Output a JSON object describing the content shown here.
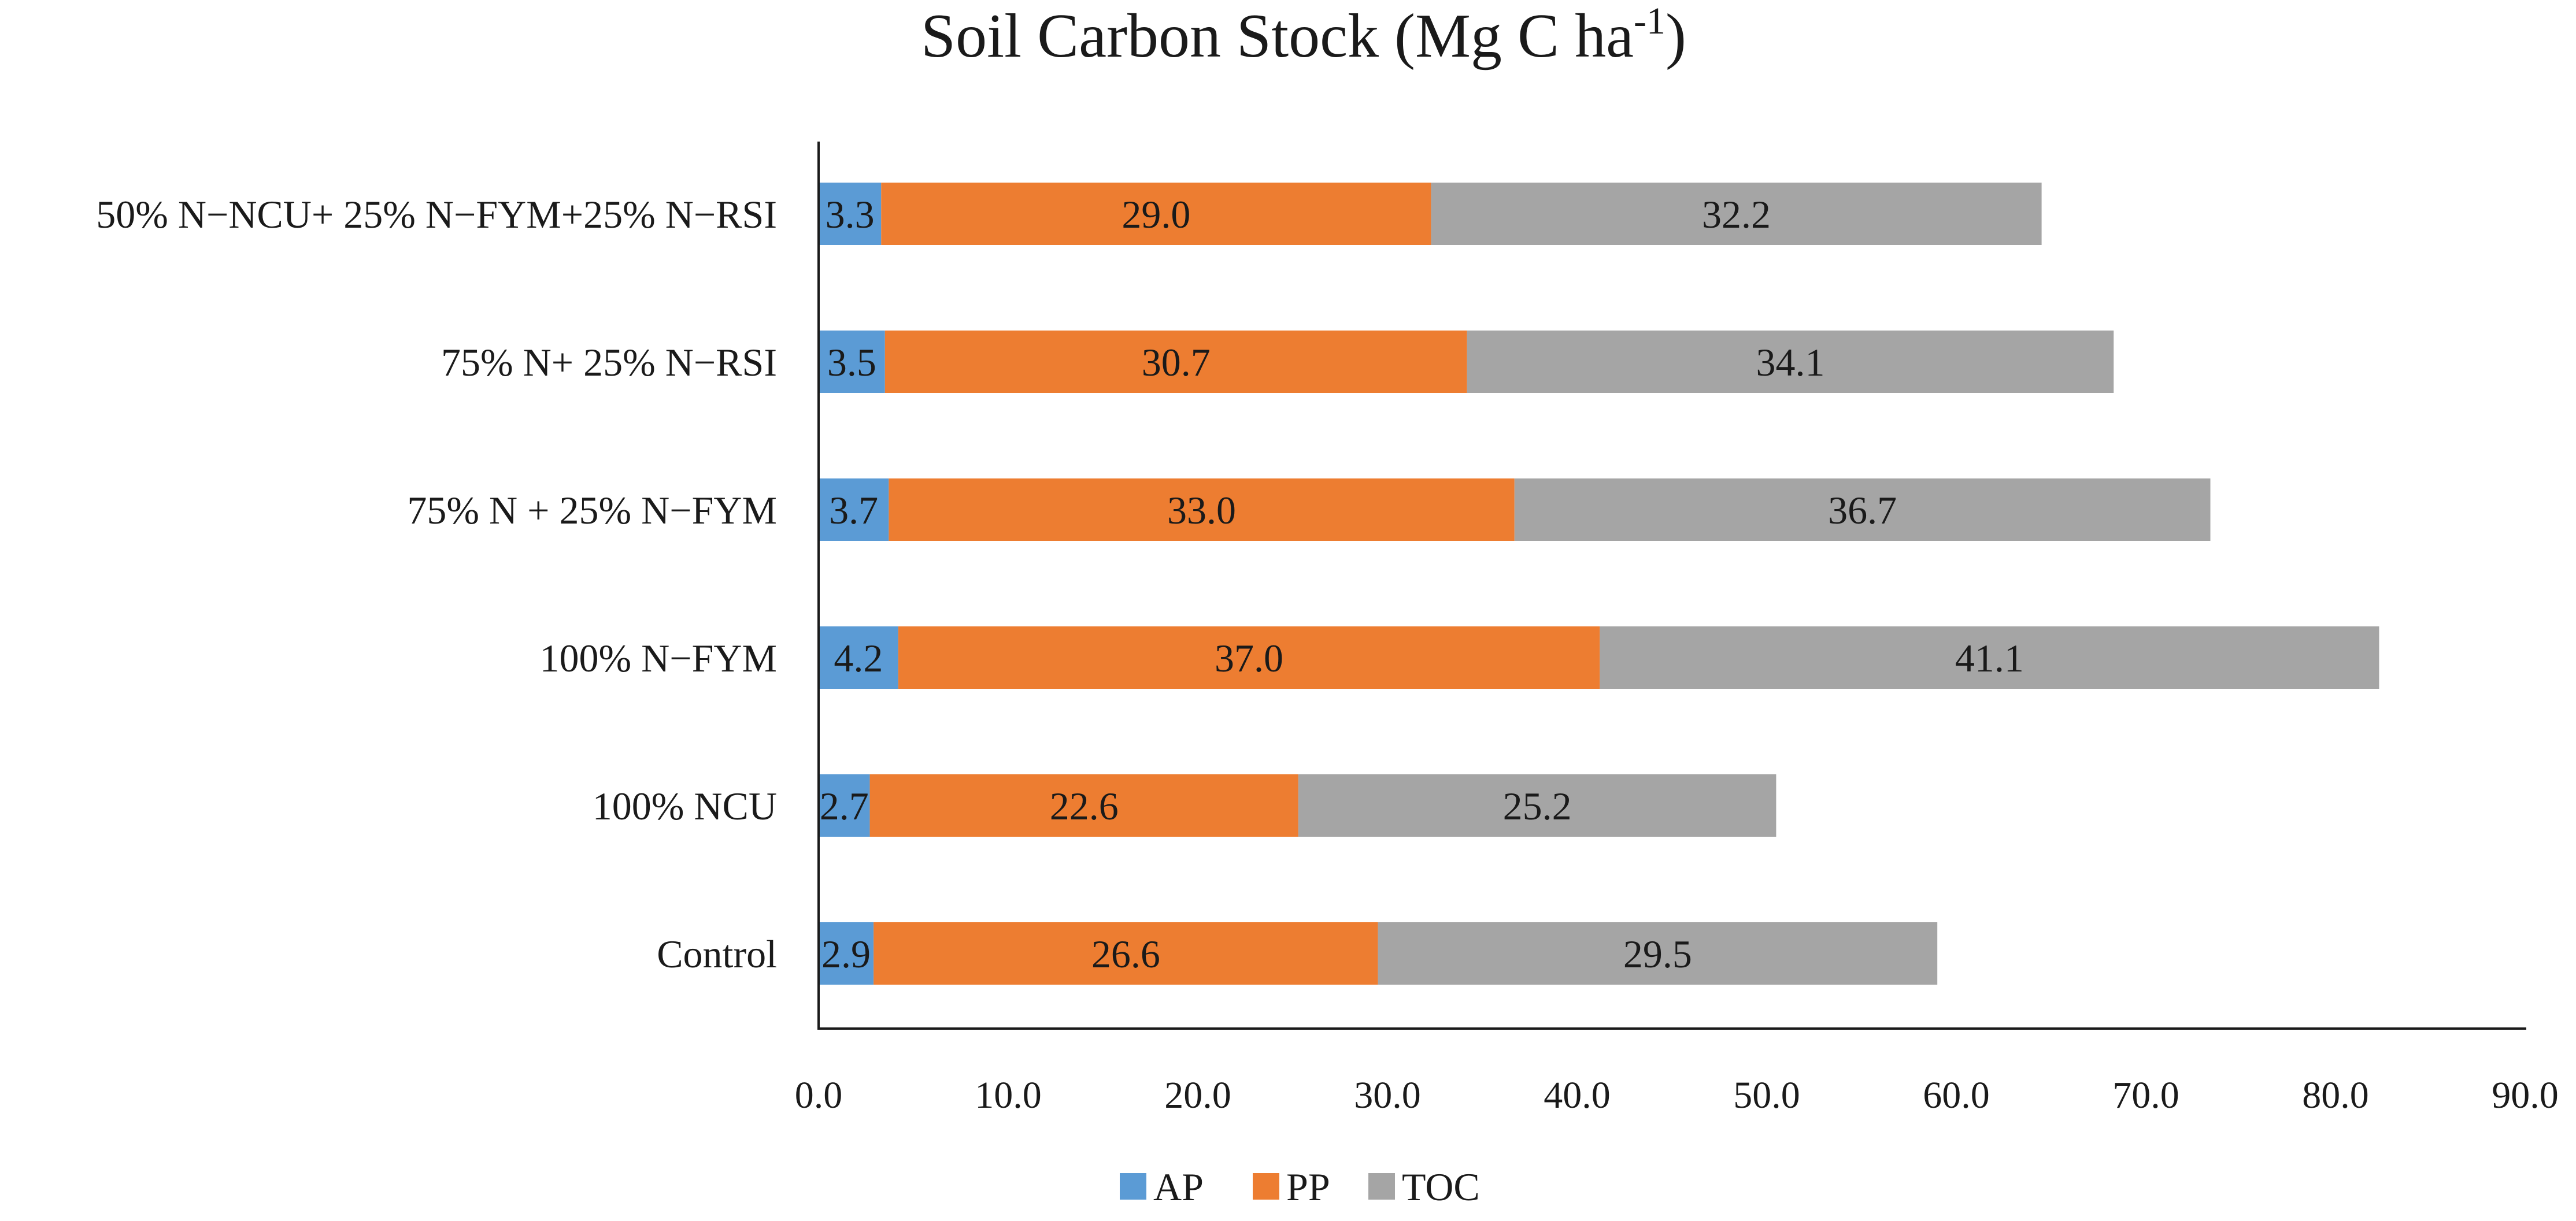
{
  "chart_data": {
    "type": "bar",
    "orientation": "horizontal",
    "stacked": true,
    "title": "Soil Carbon Stock (Mg C ha",
    "title_superscript": "-1",
    "title_suffix": ")",
    "categories": [
      "50% N−NCU+ 25% N−FYM+25% N−RSI",
      "75% N+ 25% N−RSI",
      "75% N + 25% N−FYM",
      "100% N−FYM",
      "100% NCU",
      "Control"
    ],
    "series": [
      {
        "name": "AP",
        "color": "#5b9bd5",
        "values": [
          3.3,
          3.5,
          3.7,
          4.2,
          2.7,
          2.9
        ]
      },
      {
        "name": "PP",
        "color": "#ed7d31",
        "values": [
          29.0,
          30.7,
          33.0,
          37.0,
          22.6,
          26.6
        ]
      },
      {
        "name": "TOC",
        "color": "#a5a5a5",
        "values": [
          32.2,
          34.1,
          36.7,
          41.1,
          25.2,
          29.5
        ]
      }
    ],
    "xlim": [
      0,
      90
    ],
    "xticks": [
      "0.0",
      "10.0",
      "20.0",
      "30.0",
      "40.0",
      "50.0",
      "60.0",
      "70.0",
      "80.0",
      "90.0"
    ],
    "xlabel": "",
    "ylabel": "",
    "grid": false,
    "legend_position": "bottom"
  }
}
